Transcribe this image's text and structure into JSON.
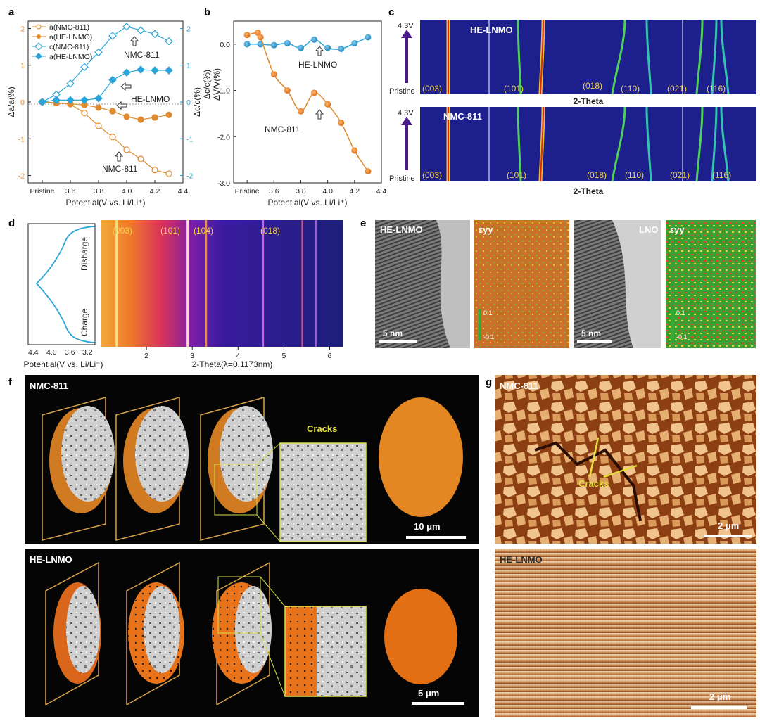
{
  "panel_letters": [
    "a",
    "b",
    "c",
    "d",
    "e",
    "f",
    "g"
  ],
  "chart_data": [
    {
      "panel": "a",
      "type": "line",
      "xlabel": "Potential(V vs. Li/Li⁺)",
      "ylabel": "Δa/a(%)",
      "ylabel_right": "Δc/c(%)",
      "xlim": [
        3.3,
        4.4
      ],
      "ylim": [
        -2.2,
        2.2
      ],
      "x_tick_labels": [
        "Pristine",
        "3.6",
        "3.8",
        "4.0",
        "4.2",
        "4.4"
      ],
      "y_tick_labels": [
        "-2",
        "-1",
        "0",
        "1",
        "2"
      ],
      "y_right_tick_labels": [
        "-2",
        "-1",
        "0",
        "1",
        "2"
      ],
      "series": [
        {
          "name": "a(NMC-811)",
          "color": "#e08a2e",
          "marker": "open-circle",
          "x": [
            3.4,
            3.5,
            3.6,
            3.7,
            3.8,
            3.9,
            4.0,
            4.1,
            4.2,
            4.3
          ],
          "y": [
            0,
            -0.02,
            -0.06,
            -0.3,
            -0.65,
            -0.95,
            -1.3,
            -1.55,
            -1.85,
            -1.95
          ]
        },
        {
          "name": "a(HE-LNMO)",
          "color": "#e08a2e",
          "marker": "filled-circle",
          "x": [
            3.4,
            3.5,
            3.6,
            3.7,
            3.8,
            3.9,
            4.0,
            4.1,
            4.2,
            4.3
          ],
          "y": [
            0,
            -0.03,
            -0.05,
            -0.08,
            -0.15,
            -0.25,
            -0.4,
            -0.48,
            -0.42,
            -0.35
          ]
        },
        {
          "name": "c(NMC-811)",
          "color": "#2aa5d9",
          "marker": "open-diamond",
          "x": [
            3.4,
            3.5,
            3.6,
            3.7,
            3.8,
            3.9,
            4.0,
            4.1,
            4.2,
            4.3
          ],
          "y": [
            0,
            0.2,
            0.5,
            0.95,
            1.35,
            1.8,
            2.05,
            1.95,
            1.85,
            1.65
          ]
        },
        {
          "name": "a(HE-LNMO)",
          "color": "#2aa5d9",
          "marker": "filled-diamond",
          "x": [
            3.4,
            3.5,
            3.6,
            3.7,
            3.8,
            3.9,
            4.0,
            4.1,
            4.2,
            4.3
          ],
          "y": [
            0,
            0.05,
            0.05,
            0.05,
            0.1,
            0.6,
            0.8,
            0.88,
            0.86,
            0.86
          ]
        }
      ],
      "annotations": [
        "NMC-811",
        "HE-LNMO",
        "NMC-811"
      ]
    },
    {
      "panel": "b",
      "type": "line",
      "xlabel": "Potential(V vs. Li/Li⁺)",
      "ylabel": "Δc/c(%)",
      "ylabel2": "ΔV/V(%)",
      "xlim": [
        3.3,
        4.4
      ],
      "ylim": [
        -3.0,
        0.5
      ],
      "x_tick_labels": [
        "Pristine",
        "3.6",
        "3.8",
        "4.0",
        "4.2",
        "4.4"
      ],
      "y_tick_labels": [
        "0.0",
        "-1.0",
        "-2.0",
        "-3.0"
      ],
      "series": [
        {
          "name": "HE-LNMO",
          "color": "#2aa5d9",
          "x": [
            3.4,
            3.5,
            3.6,
            3.7,
            3.8,
            3.9,
            4.0,
            4.1,
            4.2,
            4.3
          ],
          "y": [
            0,
            0,
            -0.02,
            0.02,
            -0.08,
            0.1,
            -0.08,
            -0.1,
            0.02,
            0.15
          ]
        },
        {
          "name": "NMC-811",
          "color": "#e08a2e",
          "x": [
            3.4,
            3.48,
            3.5,
            3.6,
            3.7,
            3.8,
            3.9,
            4.0,
            4.1,
            4.2,
            4.3
          ],
          "y": [
            0.2,
            0.25,
            0.15,
            -0.65,
            -1.0,
            -1.45,
            -1.05,
            -1.3,
            -1.7,
            -2.3,
            -2.75
          ]
        }
      ],
      "annotations": [
        "HE-LNMO",
        "NMC-811"
      ]
    },
    {
      "panel": "c",
      "type": "heatmap",
      "xlabel": "2-Theta",
      "sub_panels": [
        {
          "name": "HE-LNMO",
          "y_top": "4.3V",
          "y_bottom": "Pristine",
          "peaks": [
            "(003)",
            "(101)",
            "(018)",
            "(110)",
            "(021)",
            "(116)"
          ]
        },
        {
          "name": "NMC-811",
          "y_top": "4.3V",
          "y_bottom": "Pristine",
          "peaks": [
            "(003)",
            "(101)",
            "(018)",
            "(110)",
            "(021)",
            "(116)"
          ]
        }
      ]
    },
    {
      "panel": "d",
      "type": "heatmap",
      "voltage_xlabel": "Potential(V vs. Li/Li⁻)",
      "voltage_ticks": [
        "4.4",
        "4.0",
        "3.6",
        "3.2"
      ],
      "side_labels": [
        "Disharge",
        "Charge"
      ],
      "xlabel": "2-Theta(λ=0.1173nm)",
      "x_ticks": [
        2,
        3,
        4,
        5,
        6
      ],
      "xlim": [
        1.0,
        6.3
      ],
      "peaks": [
        "(003)",
        "(101)",
        "(104)",
        "(018)"
      ]
    }
  ],
  "panel_e": {
    "labels": [
      "HE-LNMO",
      "εyy",
      "LNO",
      "εyy"
    ],
    "scale_bars": [
      "5 nm",
      "5 nm"
    ],
    "colorbar_ticks": [
      "0.1",
      "-0.1"
    ]
  },
  "panel_f": {
    "top_label": "NMC-811",
    "bottom_label": "HE-LNMO",
    "cracks_label": "Cracks",
    "scale_top": "10 μm",
    "scale_bottom": "5 μm"
  },
  "panel_g": {
    "top_label": "NMC-811",
    "bottom_label": "HE-LNMO",
    "cracks_label": "Cracks",
    "scale_top": "2 μm",
    "scale_bottom": "2 μm"
  },
  "colors": {
    "orange": "#e08a2e",
    "blue": "#2aa5d9",
    "yellow_label": "#f2d24a",
    "heat_bg": "#1d1f8c"
  }
}
